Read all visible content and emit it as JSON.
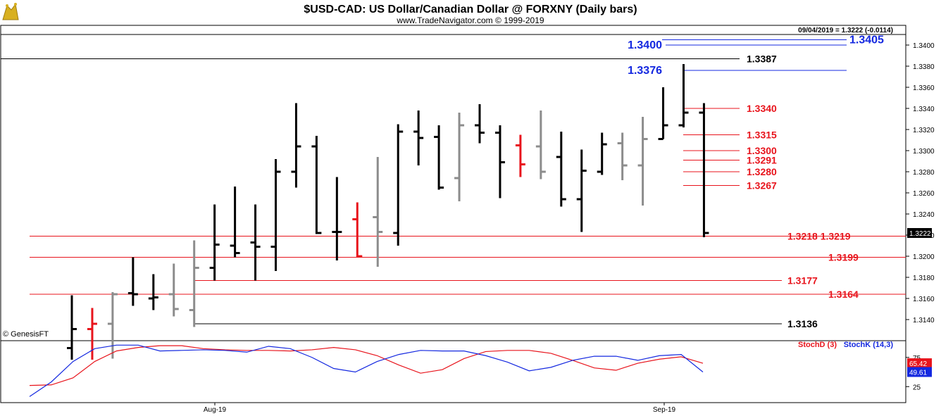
{
  "header": {
    "title": "$USD-CAD:  US Dollar/Canadian Dollar @ FORXNY  (Daily bars)",
    "copyright": "www.TradeNavigator.com © 1999-2019",
    "quote": "09/04/2019 = 1.3222 (-0.0114)",
    "watermark": "© GenesisFT"
  },
  "colors": {
    "up_bar": "#000000",
    "down_bar": "#e8141c",
    "neutral_bar": "#8c8c8c",
    "red_level": "#e8141c",
    "blue_level": "#1428e0",
    "black_level": "#000000",
    "stoch_d": "#e8141c",
    "stoch_k": "#1428e0"
  },
  "chart_data": {
    "type": "bar",
    "subtype": "ohlc",
    "title": "$USD-CAD:  US Dollar/Canadian Dollar @ FORXNY  (Daily bars)",
    "ylim": [
      1.312,
      1.342
    ],
    "y_ticks": [
      "1.3400",
      "1.3380",
      "1.3360",
      "1.3340",
      "1.3320",
      "1.3300",
      "1.3280",
      "1.3260",
      "1.3240",
      "1.3220",
      "1.3200",
      "1.3180",
      "1.3160",
      "1.3140"
    ],
    "last_price": "1.3222",
    "x_tick_labels": [
      "Aug-19",
      "Sep-19"
    ],
    "bars": [
      {
        "o": 1.3113,
        "h": 1.3163,
        "l": 1.3102,
        "c": 1.3131,
        "col": "black"
      },
      {
        "o": 1.3131,
        "h": 1.3151,
        "l": 1.3102,
        "c": 1.3136,
        "col": "red"
      },
      {
        "o": 1.3136,
        "h": 1.3166,
        "l": 1.3103,
        "c": 1.3164,
        "col": "gray"
      },
      {
        "o": 1.3165,
        "h": 1.3199,
        "l": 1.3153,
        "c": 1.3164,
        "col": "black"
      },
      {
        "o": 1.316,
        "h": 1.3183,
        "l": 1.3149,
        "c": 1.3161,
        "col": "black"
      },
      {
        "o": 1.3164,
        "h": 1.3193,
        "l": 1.3143,
        "c": 1.315,
        "col": "gray"
      },
      {
        "o": 1.3149,
        "h": 1.3215,
        "l": 1.3133,
        "c": 1.3189,
        "col": "gray"
      },
      {
        "o": 1.3189,
        "h": 1.3249,
        "l": 1.3177,
        "c": 1.3211,
        "col": "black"
      },
      {
        "o": 1.321,
        "h": 1.3266,
        "l": 1.3199,
        "c": 1.3203,
        "col": "black"
      },
      {
        "o": 1.3213,
        "h": 1.3249,
        "l": 1.3177,
        "c": 1.3209,
        "col": "black"
      },
      {
        "o": 1.3209,
        "h": 1.3292,
        "l": 1.3186,
        "c": 1.328,
        "col": "black"
      },
      {
        "o": 1.328,
        "h": 1.3345,
        "l": 1.3265,
        "c": 1.3304,
        "col": "black"
      },
      {
        "o": 1.3304,
        "h": 1.3314,
        "l": 1.3221,
        "c": 1.3222,
        "col": "black"
      },
      {
        "o": 1.3223,
        "h": 1.3275,
        "l": 1.3196,
        "c": 1.3223,
        "col": "black"
      },
      {
        "o": 1.3235,
        "h": 1.3251,
        "l": 1.3199,
        "c": 1.32,
        "col": "red"
      },
      {
        "o": 1.3237,
        "h": 1.3294,
        "l": 1.319,
        "c": 1.3223,
        "col": "gray"
      },
      {
        "o": 1.3222,
        "h": 1.3325,
        "l": 1.321,
        "c": 1.3318,
        "col": "black"
      },
      {
        "o": 1.3318,
        "h": 1.3338,
        "l": 1.3286,
        "c": 1.3312,
        "col": "black"
      },
      {
        "o": 1.3313,
        "h": 1.3324,
        "l": 1.3263,
        "c": 1.3265,
        "col": "black"
      },
      {
        "o": 1.3274,
        "h": 1.3336,
        "l": 1.3252,
        "c": 1.3324,
        "col": "gray"
      },
      {
        "o": 1.3324,
        "h": 1.3344,
        "l": 1.3307,
        "c": 1.3317,
        "col": "black"
      },
      {
        "o": 1.3317,
        "h": 1.3324,
        "l": 1.3255,
        "c": 1.3289,
        "col": "black"
      },
      {
        "o": 1.3305,
        "h": 1.3315,
        "l": 1.3275,
        "c": 1.3287,
        "col": "red"
      },
      {
        "o": 1.3304,
        "h": 1.3338,
        "l": 1.3273,
        "c": 1.328,
        "col": "gray"
      },
      {
        "o": 1.3294,
        "h": 1.3318,
        "l": 1.3247,
        "c": 1.3254,
        "col": "black"
      },
      {
        "o": 1.3254,
        "h": 1.3301,
        "l": 1.3223,
        "c": 1.3281,
        "col": "black"
      },
      {
        "o": 1.328,
        "h": 1.3317,
        "l": 1.3277,
        "c": 1.3306,
        "col": "black"
      },
      {
        "o": 1.3307,
        "h": 1.3317,
        "l": 1.3272,
        "c": 1.3286,
        "col": "gray"
      },
      {
        "o": 1.3286,
        "h": 1.3332,
        "l": 1.3248,
        "c": 1.3311,
        "col": "gray"
      },
      {
        "o": 1.3311,
        "h": 1.336,
        "l": 1.3311,
        "c": 1.3324,
        "col": "black"
      },
      {
        "o": 1.3324,
        "h": 1.3382,
        "l": 1.3322,
        "c": 1.3336,
        "col": "black"
      },
      {
        "o": 1.3336,
        "h": 1.3345,
        "l": 1.3218,
        "c": 1.3222,
        "col": "black"
      }
    ],
    "levels": [
      {
        "value": 1.3405,
        "label": "1.3405",
        "color": "blue",
        "span": "long",
        "label_side": "right"
      },
      {
        "value": 1.34,
        "label": "1.3400",
        "color": "blue",
        "span": "long",
        "label_side": "left"
      },
      {
        "value": 1.3387,
        "label": "1.3387",
        "color": "black",
        "span": "full",
        "label_side": "right"
      },
      {
        "value": 1.3376,
        "label": "1.3376",
        "color": "blue",
        "span": "long",
        "label_side": "left"
      },
      {
        "value": 1.334,
        "label": "1.3340",
        "color": "red",
        "span": "short",
        "label_side": "right"
      },
      {
        "value": 1.3315,
        "label": "1.3315",
        "color": "red",
        "span": "short",
        "label_side": "right"
      },
      {
        "value": 1.33,
        "label": "1.3300",
        "color": "red",
        "span": "short",
        "label_side": "right"
      },
      {
        "value": 1.3291,
        "label": "1.3291",
        "color": "red",
        "span": "short",
        "label_side": "right"
      },
      {
        "value": 1.328,
        "label": "1.3280",
        "color": "red",
        "span": "short",
        "label_side": "right"
      },
      {
        "value": 1.3267,
        "label": "1.3267",
        "color": "red",
        "span": "short",
        "label_side": "right"
      },
      {
        "value": 1.3219,
        "label": "1.3218 1.3219",
        "color": "red",
        "span": "wide",
        "label_side": "right"
      },
      {
        "value": 1.3199,
        "label": "1.3199",
        "color": "red",
        "span": "wide",
        "label_side": "right"
      },
      {
        "value": 1.3177,
        "label": "1.3177",
        "color": "red",
        "span": "mid",
        "label_side": "right"
      },
      {
        "value": 1.3164,
        "label": "1.3164",
        "color": "red",
        "span": "wide",
        "label_side": "right"
      },
      {
        "value": 1.3136,
        "label": "1.3136",
        "color": "black",
        "span": "mid",
        "label_side": "right"
      }
    ],
    "stochastic": {
      "ylim": [
        0,
        100
      ],
      "y_ticks": [
        "75",
        "25"
      ],
      "stoch_d_label": "StochD (3)",
      "stoch_k_label": "StochK (14,3)",
      "stoch_d_last": "65.42",
      "stoch_k_last": "49.61",
      "stoch_d": [
        27,
        28,
        40,
        68,
        86,
        92,
        95,
        95,
        90,
        88,
        87,
        87,
        86,
        88,
        92,
        88,
        78,
        62,
        48,
        54,
        73,
        85,
        87,
        87,
        82,
        70,
        57,
        53,
        65,
        72,
        76,
        65
      ],
      "stoch_k": [
        8,
        33,
        68,
        90,
        96,
        96,
        86,
        87,
        88,
        87,
        84,
        94,
        90,
        75,
        56,
        50,
        68,
        80,
        87,
        86,
        86,
        78,
        67,
        52,
        58,
        70,
        77,
        77,
        70,
        78,
        80,
        50
      ]
    }
  }
}
